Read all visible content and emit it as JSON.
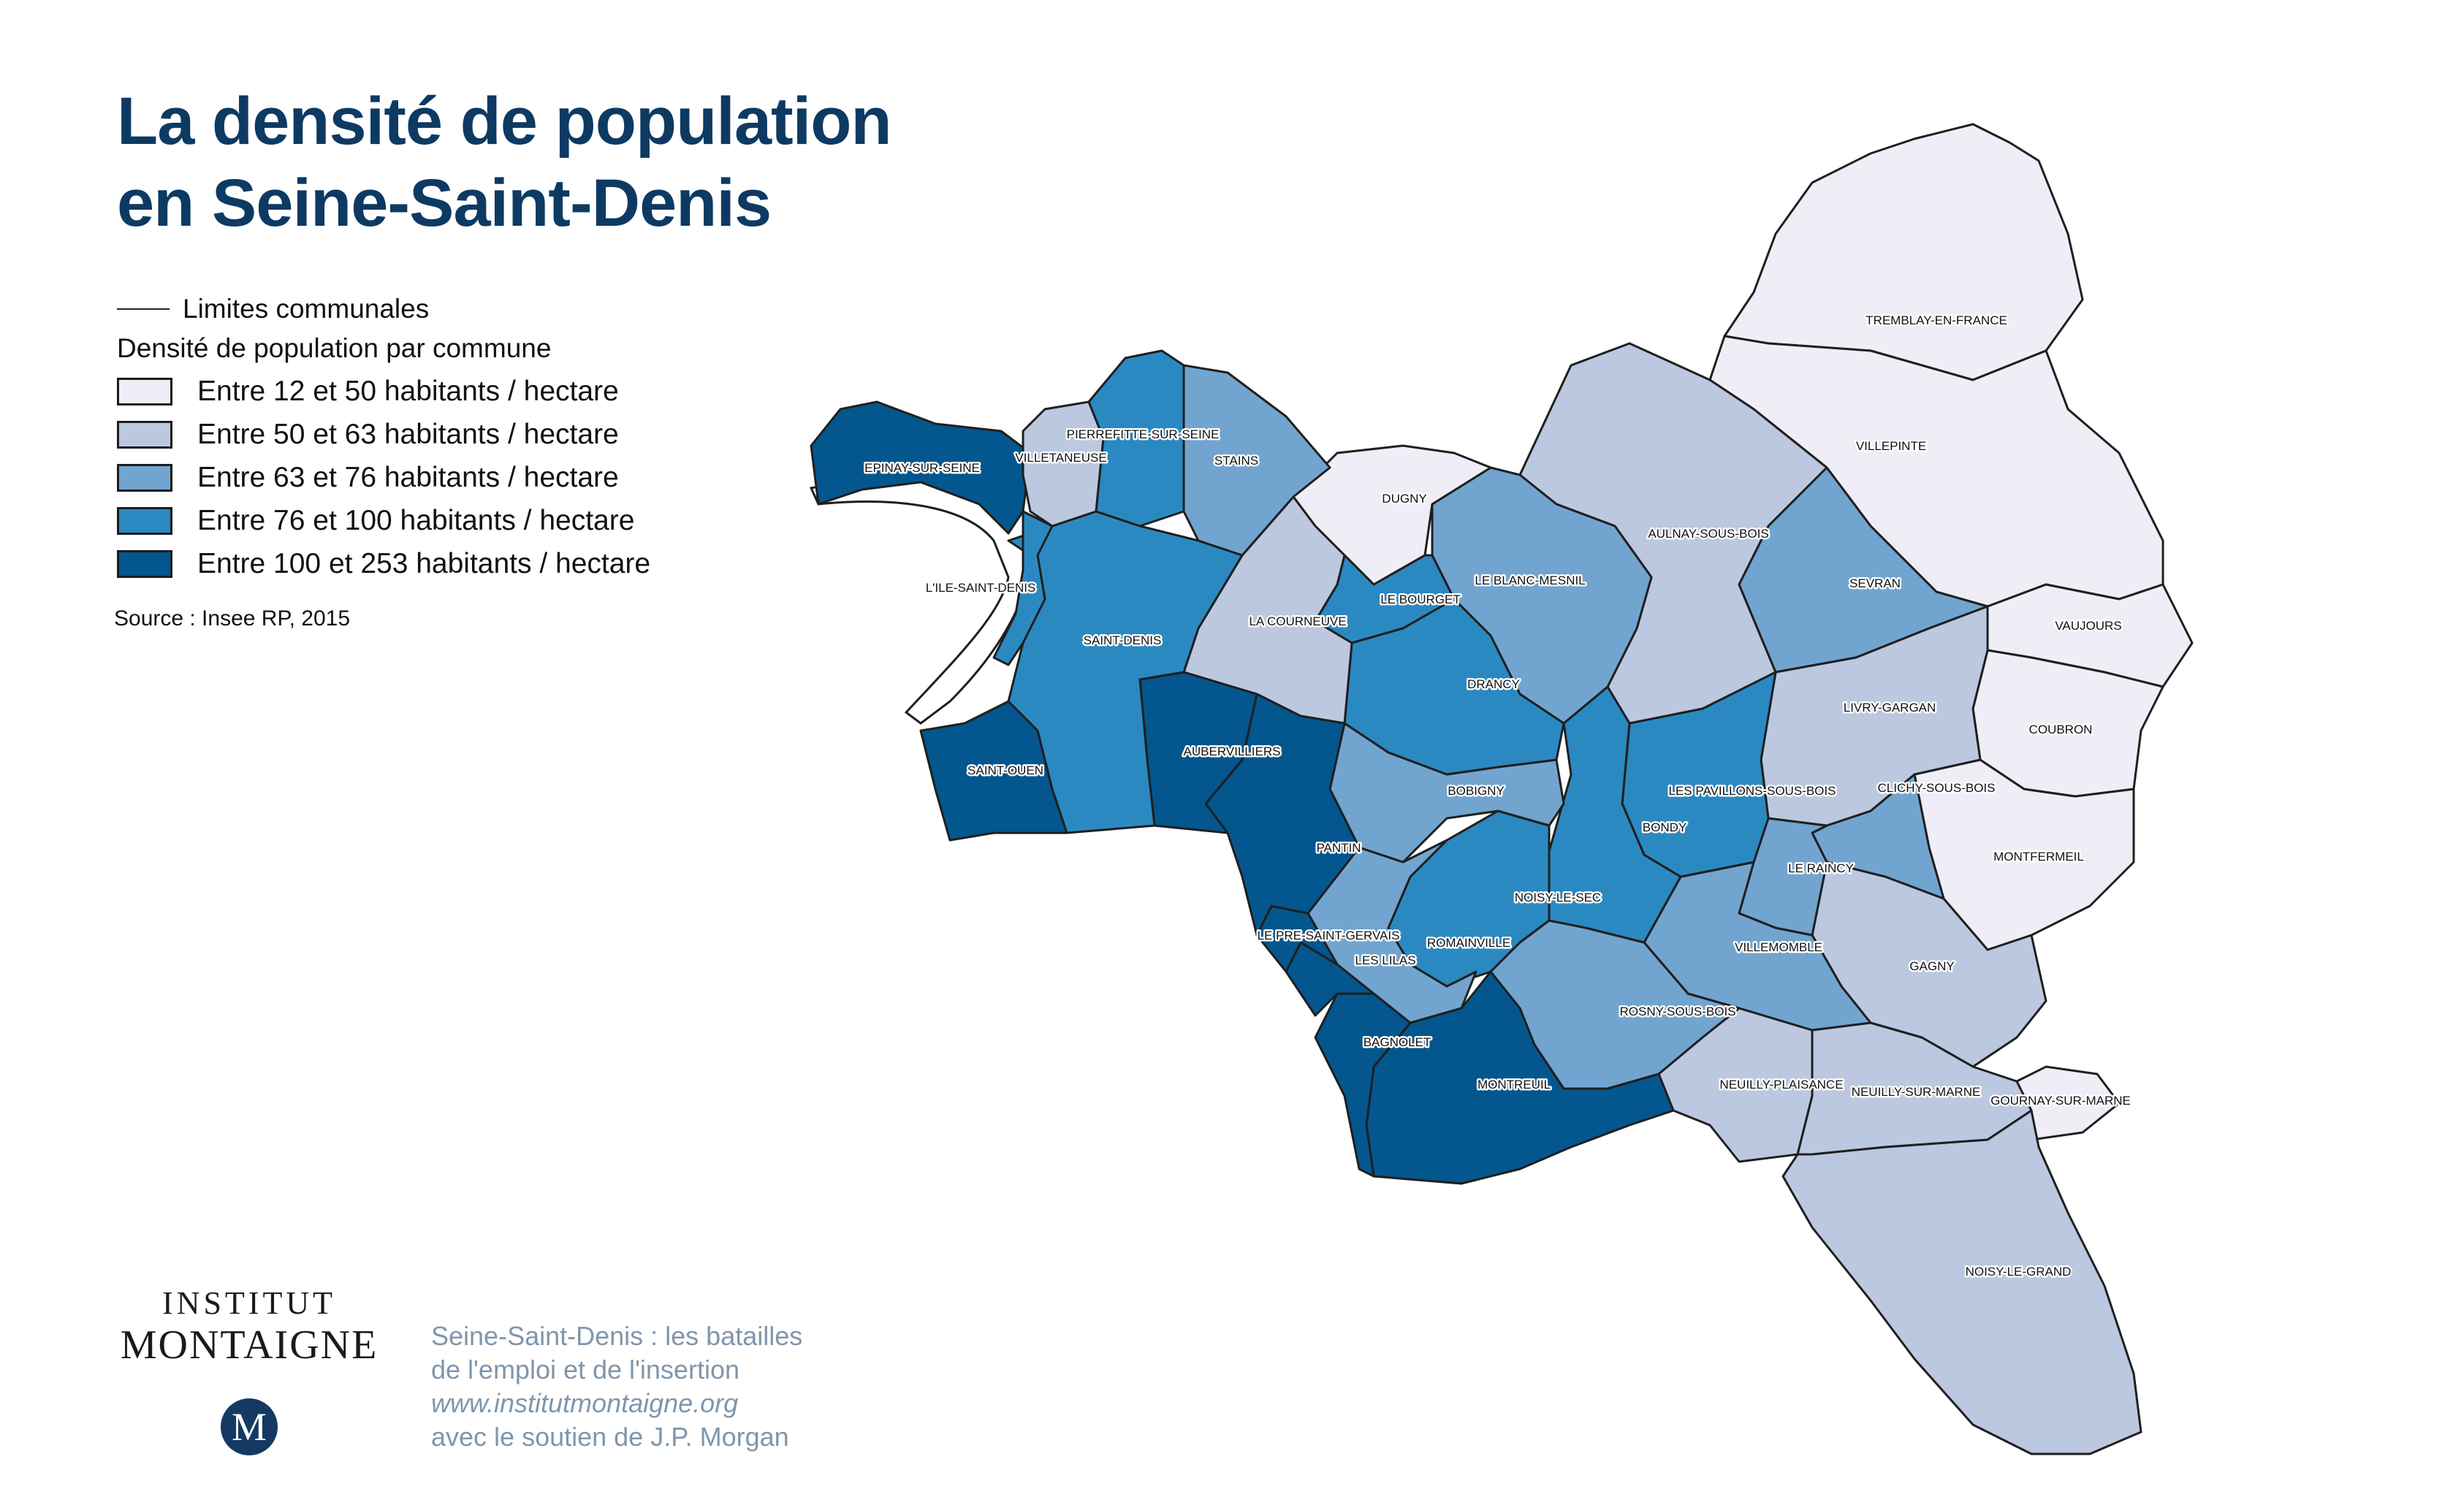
{
  "title": {
    "line1": "La densité de population",
    "line2": "en Seine-Saint-Denis"
  },
  "legend": {
    "line_label": "Limites communales",
    "subtitle": "Densité de population par commune",
    "classes": [
      {
        "label": "Entre 12 et 50 habitants / hectare",
        "color": "#efeef6"
      },
      {
        "label": "Entre 50 et 63 habitants / hectare",
        "color": "#bcc8e0"
      },
      {
        "label": "Entre 63 et 76 habitants / hectare",
        "color": "#71a5d0"
      },
      {
        "label": "Entre 76 et 100 habitants / hectare",
        "color": "#2b89c2"
      },
      {
        "label": "Entre 100 et 253 habitants / hectare",
        "color": "#03578e"
      }
    ]
  },
  "source": "Source : Insee RP, 2015",
  "logo": {
    "line1": "INSTITUT",
    "line2": "MONTAIGNE",
    "monogram": "M"
  },
  "credits": {
    "line1": "Seine-Saint-Denis : les batailles",
    "line2": "de l'emploi et de l'insertion",
    "line3": "www.institutmontaigne.org",
    "line4": "avec le soutien de J.P. Morgan"
  },
  "communes": [
    {
      "name": "TREMBLAY-EN-FRANCE",
      "class": 0
    },
    {
      "name": "VILLEPINTE",
      "class": 0
    },
    {
      "name": "VAUJOURS",
      "class": 0
    },
    {
      "name": "COUBRON",
      "class": 0
    },
    {
      "name": "MONTFERMEIL",
      "class": 0
    },
    {
      "name": "GOURNAY-SUR-MARNE",
      "class": 0
    },
    {
      "name": "DUGNY",
      "class": 0
    },
    {
      "name": "AULNAY-SOUS-BOIS",
      "class": 1
    },
    {
      "name": "VILLETANEUSE",
      "class": 1
    },
    {
      "name": "LA COURNEUVE",
      "class": 1
    },
    {
      "name": "LIVRY-GARGAN",
      "class": 1
    },
    {
      "name": "GAGNY",
      "class": 1
    },
    {
      "name": "NEUILLY-PLAISANCE",
      "class": 1
    },
    {
      "name": "NEUILLY-SUR-MARNE",
      "class": 1
    },
    {
      "name": "NOISY-LE-GRAND",
      "class": 1
    },
    {
      "name": "STAINS",
      "class": 2
    },
    {
      "name": "LE BLANC-MESNIL",
      "class": 2
    },
    {
      "name": "SEVRAN",
      "class": 2
    },
    {
      "name": "BOBIGNY",
      "class": 2
    },
    {
      "name": "CLICHY-SOUS-BOIS",
      "class": 2
    },
    {
      "name": "LE RAINCY",
      "class": 2
    },
    {
      "name": "VILLEMOMBLE",
      "class": 2
    },
    {
      "name": "ROSNY-SOUS-BOIS",
      "class": 2
    },
    {
      "name": "ROMAINVILLE",
      "class": 2
    },
    {
      "name": "PIERREFITTE-SUR-SEINE",
      "class": 3
    },
    {
      "name": "L'ILE-SAINT-DENIS",
      "class": 3
    },
    {
      "name": "SAINT-DENIS",
      "class": 3
    },
    {
      "name": "LE BOURGET",
      "class": 3
    },
    {
      "name": "DRANCY",
      "class": 3
    },
    {
      "name": "LES PAVILLONS-SOUS-BOIS",
      "class": 3
    },
    {
      "name": "BONDY",
      "class": 3
    },
    {
      "name": "NOISY-LE-SEC",
      "class": 3
    },
    {
      "name": "EPINAY-SUR-SEINE",
      "class": 4
    },
    {
      "name": "SAINT-OUEN",
      "class": 4
    },
    {
      "name": "AUBERVILLIERS",
      "class": 4
    },
    {
      "name": "PANTIN",
      "class": 4
    },
    {
      "name": "LE PRE-SAINT-GERVAIS",
      "class": 4
    },
    {
      "name": "LES LILAS",
      "class": 4
    },
    {
      "name": "BAGNOLET",
      "class": 4
    },
    {
      "name": "MONTREUIL",
      "class": 4
    }
  ]
}
